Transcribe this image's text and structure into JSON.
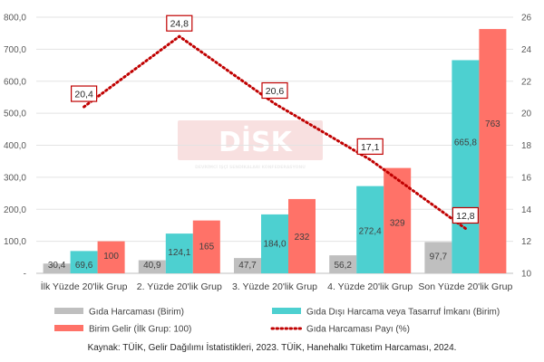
{
  "chart_data": {
    "type": "bar",
    "categories": [
      "İlk  Yüzde 20'lik  Grup",
      "2. Yüzde 20'lik Grup",
      "3. Yüzde 20'lik Grup",
      "4. Yüzde 20'lik Grup",
      "Son Yüzde 20'lik Grup"
    ],
    "series": [
      {
        "name": "Gıda Harcaması (Birim)",
        "type": "bar",
        "axis": "left",
        "color": "#BFBFBF",
        "values": [
          30.4,
          40.9,
          47.7,
          56.2,
          97.7
        ],
        "labels": [
          "30,4",
          "40,9",
          "47,7",
          "56,2",
          "97,7"
        ]
      },
      {
        "name": "Gıda Dışı Harcama veya Tasarruf İmkanı (Birim)",
        "type": "bar",
        "axis": "left",
        "color": "#4DD0D0",
        "values": [
          69.6,
          124.1,
          184.0,
          272.4,
          665.8
        ],
        "labels": [
          "69,6",
          "124,1",
          "184,0",
          "272,4",
          "665,8"
        ]
      },
      {
        "name": "Birim Gelir (İlk Grup: 100)",
        "type": "bar",
        "axis": "left",
        "color": "#FF7268",
        "values": [
          100,
          165,
          232,
          329,
          763
        ],
        "labels": [
          "100",
          "165",
          "232",
          "329",
          "763"
        ]
      },
      {
        "name": "Gıda Harcaması Payı (%)",
        "type": "line",
        "axis": "right",
        "color": "#C00000",
        "style": "dotted",
        "values": [
          20.4,
          24.8,
          20.6,
          17.1,
          12.8
        ],
        "labels": [
          "20,4",
          "24,8",
          "20,6",
          "17,1",
          "12,8"
        ]
      }
    ],
    "y_left": {
      "min": 0,
      "max": 800,
      "step": 100,
      "tick_labels": [
        "-",
        "100,0",
        "200,0",
        "300,0",
        "400,0",
        "500,0",
        "600,0",
        "700,0",
        "800,0"
      ]
    },
    "y_right": {
      "min": 10,
      "max": 26,
      "step": 2,
      "tick_labels": [
        "10",
        "12",
        "14",
        "16",
        "18",
        "20",
        "22",
        "24",
        "26"
      ]
    },
    "grid": true,
    "legend_position": "bottom",
    "title": "",
    "xlabel": "",
    "ylabel": ""
  },
  "watermark": {
    "text": "DİSK",
    "subtitle": "DEVRİMCİ İŞÇİ SENDİKALARI KONFEDERASYONU"
  },
  "source": "Kaynak: TÜİK, Gelir Dağılımı İstatistikleri, 2023. TÜİK, Hanehalkı Tüketim Harcaması, 2024."
}
